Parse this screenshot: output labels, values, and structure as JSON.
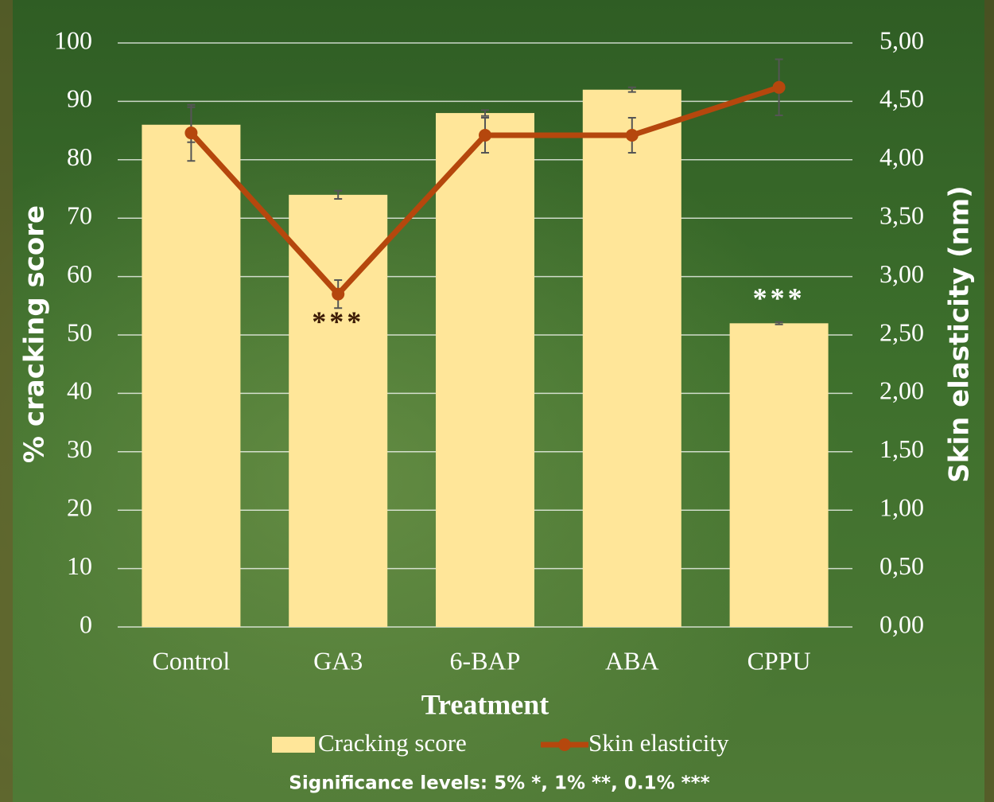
{
  "chart_data": {
    "type": "combo",
    "x_label": "Treatment",
    "y_label": "% cracking score",
    "y2_label": "Skin elasticity (nm)",
    "note": "Significance levels:  5% *, 1% **, 0.1% ***",
    "categories": [
      "Control",
      "GA3",
      "6-BAP",
      "ABA",
      "CPPU"
    ],
    "series": [
      {
        "name": "Cracking score",
        "type": "bar",
        "color": "#ffe699",
        "values": [
          86,
          74,
          88,
          92,
          52
        ],
        "errors": [
          3,
          0.7,
          0.5,
          0.4,
          0.2
        ]
      },
      {
        "name": "Skin elasticity",
        "type": "line",
        "axis": "y2",
        "color": "#b5470d",
        "values": [
          4.23,
          2.85,
          4.21,
          4.21,
          4.62
        ],
        "errors": [
          0.24,
          0.12,
          0.15,
          0.15,
          0.24
        ]
      }
    ],
    "annotations": [
      {
        "text": "***",
        "category": "GA3",
        "color": "#3b1a05"
      },
      {
        "text": "***",
        "category": "CPPU",
        "color": "#ffffff"
      }
    ],
    "ylim": [
      0,
      100
    ],
    "yticks": [
      0,
      10,
      20,
      30,
      40,
      50,
      60,
      70,
      80,
      90,
      100
    ],
    "y2lim": [
      0,
      5
    ],
    "y2ticks": [
      {
        "value": 0,
        "label": "0,00"
      },
      {
        "value": 0.5,
        "label": "0,50"
      },
      {
        "value": 1,
        "label": "1,00"
      },
      {
        "value": 1.5,
        "label": "1,50"
      },
      {
        "value": 2,
        "label": "2,00"
      },
      {
        "value": 2.5,
        "label": "2,50"
      },
      {
        "value": 3,
        "label": "3,00"
      },
      {
        "value": 3.5,
        "label": "3,50"
      },
      {
        "value": 4,
        "label": "4,00"
      },
      {
        "value": 4.5,
        "label": "4,50"
      },
      {
        "value": 5,
        "label": "5,00"
      }
    ],
    "grid": true,
    "legend": "bottom"
  }
}
